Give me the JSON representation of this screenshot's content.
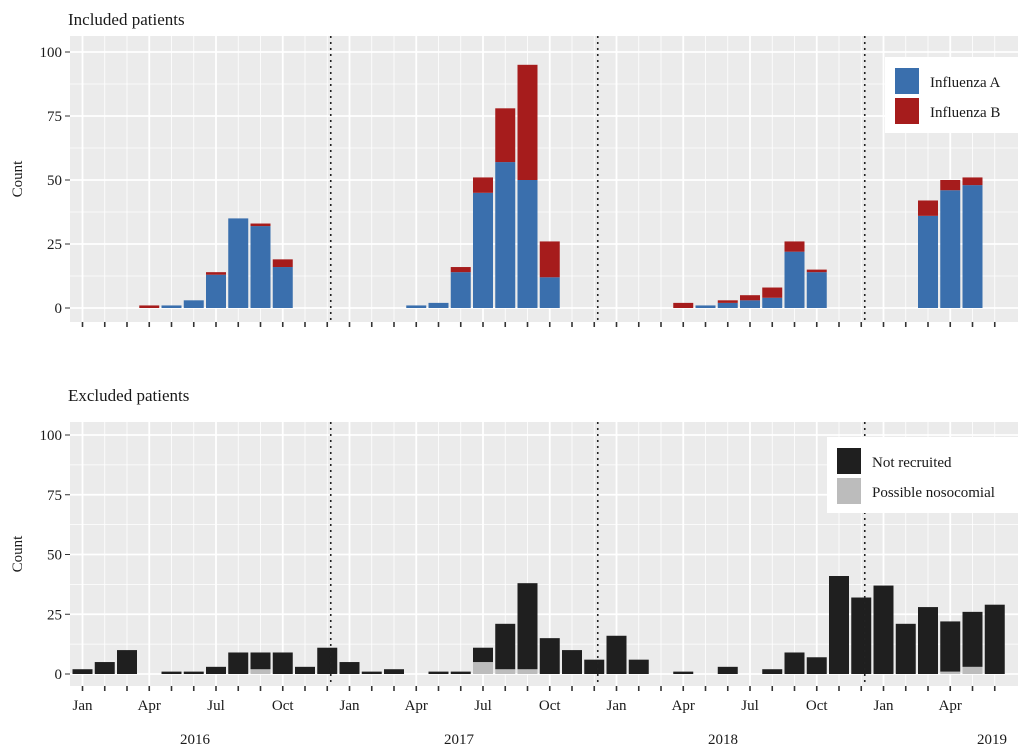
{
  "colors": {
    "panel_bg": "#ebebeb",
    "grid": "#ffffff",
    "influenza_a": "#3a6fad",
    "influenza_b": "#a61c1c",
    "not_recruited": "#1f1f1f",
    "possible_nosocomial": "#bcbcbc"
  },
  "chart_data": [
    {
      "type": "bar",
      "stacked": true,
      "title": "Included patients",
      "ylabel": "Count",
      "xlabel": "",
      "ylim": [
        0,
        100
      ],
      "yticks": [
        0,
        25,
        50,
        75,
        100
      ],
      "grid": true,
      "legend_position": "top-right",
      "x_tick_labels": [
        "Jan",
        "Apr",
        "Jul",
        "Oct",
        "Jan",
        "Apr",
        "Jul",
        "Oct",
        "Jan",
        "Apr",
        "Jul",
        "Oct",
        "Jan",
        "Apr"
      ],
      "years": [
        "2016",
        "2017",
        "2018",
        "2019"
      ],
      "season_boundaries": [
        "2016-12",
        "2017-12",
        "2018-12"
      ],
      "categories": [
        "2016-01",
        "2016-02",
        "2016-03",
        "2016-04",
        "2016-05",
        "2016-06",
        "2016-07",
        "2016-08",
        "2016-09",
        "2016-10",
        "2016-11",
        "2016-12",
        "2017-01",
        "2017-02",
        "2017-03",
        "2017-04",
        "2017-05",
        "2017-06",
        "2017-07",
        "2017-08",
        "2017-09",
        "2017-10",
        "2017-11",
        "2017-12",
        "2018-01",
        "2018-02",
        "2018-03",
        "2018-04",
        "2018-05",
        "2018-06",
        "2018-07",
        "2018-08",
        "2018-09",
        "2018-10",
        "2018-11",
        "2018-12",
        "2019-01",
        "2019-02",
        "2019-03",
        "2019-04",
        "2019-05",
        "2019-06"
      ],
      "series": [
        {
          "name": "Influenza A",
          "color": "#3a6fad",
          "values": [
            0,
            0,
            0,
            0,
            1,
            3,
            13,
            35,
            32,
            16,
            0,
            0,
            0,
            0,
            0,
            1,
            2,
            14,
            45,
            57,
            50,
            12,
            0,
            0,
            0,
            0,
            0,
            0,
            1,
            2,
            3,
            4,
            22,
            14,
            0,
            0,
            0,
            0,
            36,
            46,
            48,
            0
          ]
        },
        {
          "name": "Influenza B",
          "color": "#a61c1c",
          "values": [
            0,
            0,
            0,
            1,
            0,
            0,
            1,
            0,
            1,
            3,
            0,
            0,
            0,
            0,
            0,
            0,
            0,
            2,
            6,
            21,
            45,
            14,
            0,
            0,
            0,
            0,
            0,
            2,
            0,
            1,
            2,
            4,
            4,
            1,
            0,
            0,
            0,
            0,
            6,
            4,
            3,
            0
          ]
        }
      ]
    },
    {
      "type": "bar",
      "stacked": true,
      "title": "Excluded patients",
      "ylabel": "Count",
      "xlabel": "",
      "ylim": [
        0,
        100
      ],
      "yticks": [
        0,
        25,
        50,
        75,
        100
      ],
      "grid": true,
      "legend_position": "top-right",
      "x_tick_labels": [
        "Jan",
        "Apr",
        "Jul",
        "Oct",
        "Jan",
        "Apr",
        "Jul",
        "Oct",
        "Jan",
        "Apr",
        "Jul",
        "Oct",
        "Jan",
        "Apr"
      ],
      "years": [
        "2016",
        "2017",
        "2018",
        "2019"
      ],
      "season_boundaries": [
        "2016-12",
        "2017-12",
        "2018-12"
      ],
      "categories": [
        "2016-01",
        "2016-02",
        "2016-03",
        "2016-04",
        "2016-05",
        "2016-06",
        "2016-07",
        "2016-08",
        "2016-09",
        "2016-10",
        "2016-11",
        "2016-12",
        "2017-01",
        "2017-02",
        "2017-03",
        "2017-04",
        "2017-05",
        "2017-06",
        "2017-07",
        "2017-08",
        "2017-09",
        "2017-10",
        "2017-11",
        "2017-12",
        "2018-01",
        "2018-02",
        "2018-03",
        "2018-04",
        "2018-05",
        "2018-06",
        "2018-07",
        "2018-08",
        "2018-09",
        "2018-10",
        "2018-11",
        "2018-12",
        "2019-01",
        "2019-02",
        "2019-03",
        "2019-04",
        "2019-05",
        "2019-06"
      ],
      "series": [
        {
          "name": "Possible nosocomial",
          "color": "#bcbcbc",
          "values": [
            0,
            0,
            0,
            0,
            0,
            0,
            0,
            0,
            2,
            0,
            0,
            0,
            0,
            0,
            0,
            0,
            0,
            0,
            5,
            2,
            2,
            0,
            0,
            0,
            0,
            0,
            0,
            0,
            0,
            0,
            0,
            0,
            0,
            0,
            0,
            0,
            0,
            0,
            0,
            1,
            3,
            0
          ]
        },
        {
          "name": "Not recruited",
          "color": "#1f1f1f",
          "values": [
            2,
            5,
            10,
            0,
            1,
            1,
            3,
            9,
            7,
            9,
            3,
            11,
            5,
            1,
            2,
            0,
            1,
            1,
            6,
            19,
            36,
            15,
            10,
            6,
            16,
            6,
            0,
            1,
            0,
            3,
            0,
            2,
            9,
            7,
            41,
            32,
            37,
            21,
            28,
            21,
            23,
            29
          ]
        }
      ]
    }
  ]
}
